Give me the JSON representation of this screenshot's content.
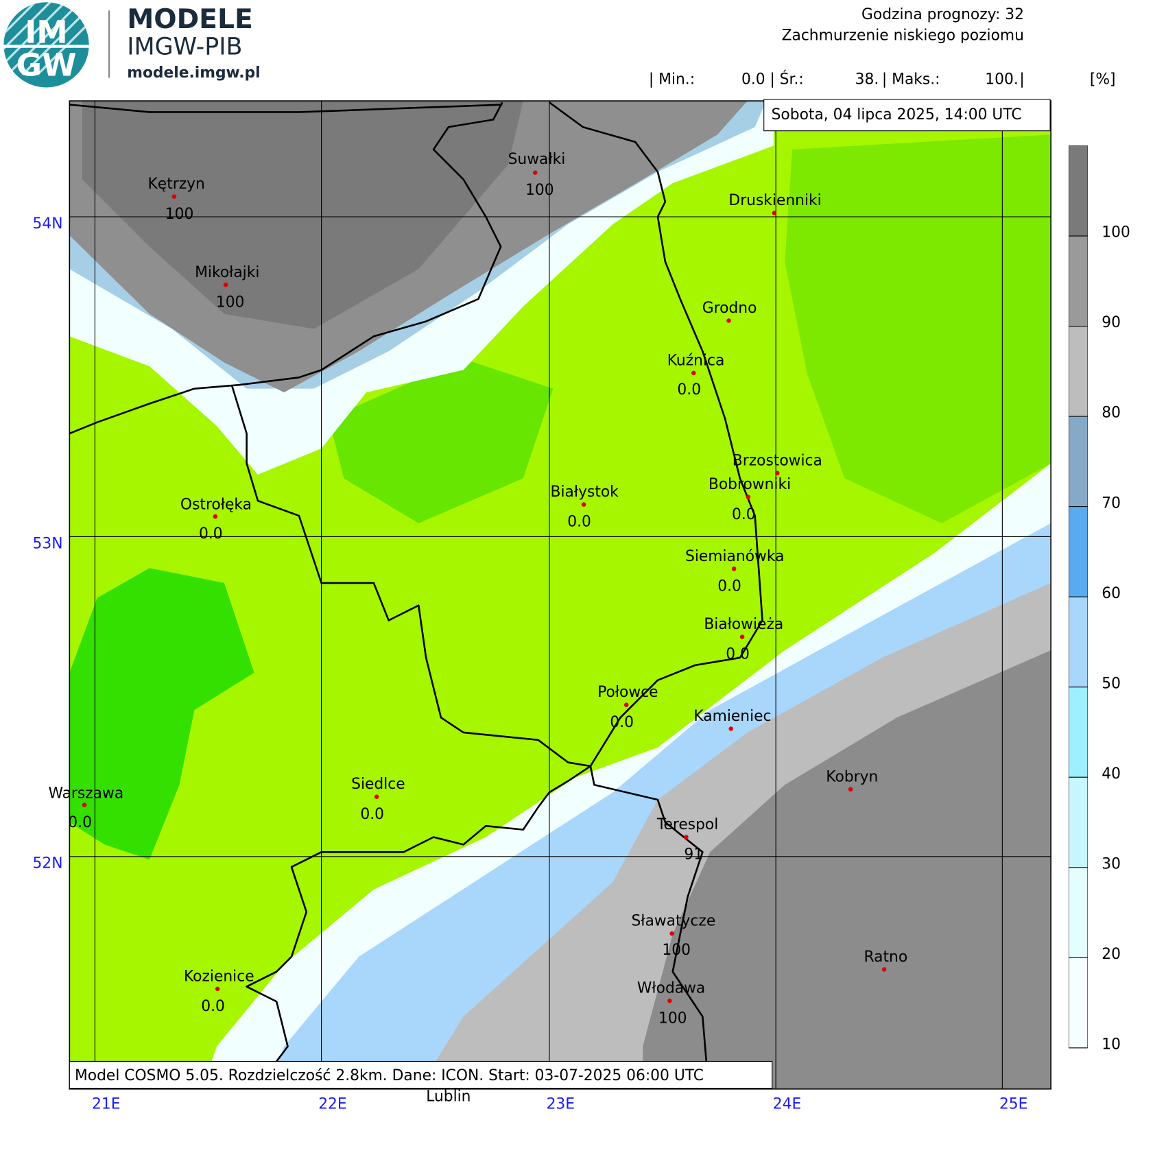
{
  "header": {
    "logo_top": "IM",
    "logo_bottom": "GW",
    "brand": "MODELE",
    "org": "IMGW-PIB",
    "url": "modele.imgw.pl",
    "forecast_hour": "Godzina prognozy: 32",
    "field": "Zachmurzenie niskiego poziomu",
    "stats": {
      "min_label": "| Min.:",
      "min": "0.0",
      "avg_label": "| Śr.:",
      "avg": "38.",
      "max_label": "| Maks.:",
      "max": "100.",
      "end": "|",
      "unit": "[%]"
    }
  },
  "date": "Sobota, 04 lipca 2025, 14:00 UTC",
  "footer": "Model COSMO 5.05. Rozdzielczość 2.8km. Dane: ICON. Start: 03-07-2025 06:00 UTC",
  "lat_labels": [
    "54N",
    "53N",
    "52N"
  ],
  "lon_labels": [
    "21E",
    "22E",
    "23E",
    "24E",
    "25E"
  ],
  "cities": [
    {
      "name": "Kętrzyn",
      "value": "100"
    },
    {
      "name": "Suwałki",
      "value": "100"
    },
    {
      "name": "Mikołajki",
      "value": "100"
    },
    {
      "name": "Druskienniki"
    },
    {
      "name": "Grodno"
    },
    {
      "name": "Kuźnica",
      "value": "0.0"
    },
    {
      "name": "Brzostowica"
    },
    {
      "name": "Bobrowniki",
      "value": "0.0"
    },
    {
      "name": "Białystok",
      "value": "0.0"
    },
    {
      "name": "Ostrołęka",
      "value": "0.0"
    },
    {
      "name": "Siemianówka",
      "value": "0.0"
    },
    {
      "name": "Białowieża",
      "value": "0.0"
    },
    {
      "name": "Połowce",
      "value": "0.0"
    },
    {
      "name": "Kamieniec"
    },
    {
      "name": "Kobryn"
    },
    {
      "name": "Warszawa",
      "value": "0.0"
    },
    {
      "name": "Siedlce",
      "value": "0.0"
    },
    {
      "name": "Terespol",
      "value": "91"
    },
    {
      "name": "Sławatycze",
      "value": "100"
    },
    {
      "name": "Ratno"
    },
    {
      "name": "Kozienice",
      "value": "0.0"
    },
    {
      "name": "Włodawa",
      "value": "100"
    },
    {
      "name": "Lublin"
    }
  ],
  "colorbar": {
    "ticks": [
      10,
      20,
      30,
      40,
      50,
      60,
      70,
      80,
      90,
      100
    ],
    "colors": [
      "#f6ffff",
      "#e4fdff",
      "#c6f7ff",
      "#9eefff",
      "#a9d6fb",
      "#5aaaf2",
      "#86a9c8",
      "#bdbdbd",
      "#9a9a9a",
      "#7a7a7a"
    ]
  }
}
